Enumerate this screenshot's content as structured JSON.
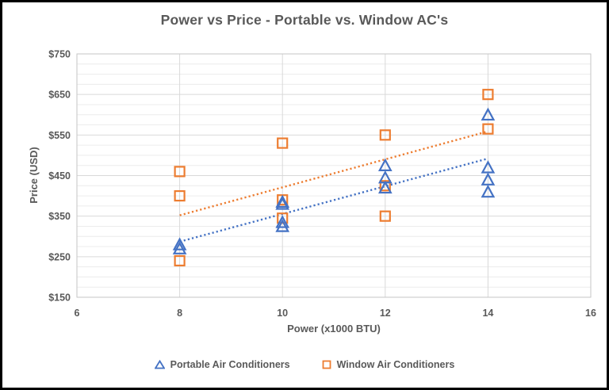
{
  "chart_data": {
    "type": "scatter",
    "title": "Power vs Price - Portable vs. Window AC's",
    "xlabel": "Power (x1000 BTU)",
    "ylabel": "Price (USD)",
    "xlim": [
      6,
      16
    ],
    "ylim": [
      150,
      750
    ],
    "x_tick_values": [
      6,
      8,
      10,
      12,
      14,
      16
    ],
    "x_tick_labels": [
      "6",
      "8",
      "10",
      "12",
      "14",
      "16"
    ],
    "y_tick_values": [
      150,
      250,
      350,
      450,
      550,
      650,
      750
    ],
    "y_tick_labels": [
      "$150",
      "$250",
      "$350",
      "$450",
      "$550",
      "$650",
      "$750"
    ],
    "y_minor_step": 25,
    "grid": {
      "major_color": "#D9D9D9",
      "minor_color": "#ECECEC",
      "border_color": "#C6C6C6"
    },
    "text_color": "#595959",
    "series": [
      {
        "name": "Window Air Conditioners",
        "marker": "square",
        "color": "#ED7D31",
        "points": [
          [
            8,
            460
          ],
          [
            8,
            400
          ],
          [
            8,
            240
          ],
          [
            10,
            530
          ],
          [
            10,
            390
          ],
          [
            10,
            345
          ],
          [
            12,
            550
          ],
          [
            12,
            425
          ],
          [
            12,
            350
          ],
          [
            14,
            650
          ],
          [
            14,
            565
          ]
        ],
        "trendline": {
          "style": "dotted",
          "x1": 8,
          "y1": 352,
          "x2": 14,
          "y2": 559
        }
      },
      {
        "name": "Portable Air Conditioners",
        "marker": "triangle",
        "color": "#4472C4",
        "points": [
          [
            8,
            280
          ],
          [
            8,
            270
          ],
          [
            10,
            385
          ],
          [
            10,
            380
          ],
          [
            10,
            335
          ],
          [
            10,
            325
          ],
          [
            12,
            475
          ],
          [
            12,
            445
          ],
          [
            12,
            420
          ],
          [
            14,
            600
          ],
          [
            14,
            470
          ],
          [
            14,
            440
          ],
          [
            14,
            410
          ]
        ],
        "trendline": {
          "style": "dotted",
          "x1": 8,
          "y1": 287,
          "x2": 14,
          "y2": 492
        }
      }
    ],
    "legend": {
      "position": "bottom",
      "items": [
        {
          "label": "Portable Air Conditioners",
          "marker": "triangle",
          "color": "#4472C4"
        },
        {
          "label": "Window Air Conditioners",
          "marker": "square",
          "color": "#ED7D31"
        }
      ]
    }
  }
}
